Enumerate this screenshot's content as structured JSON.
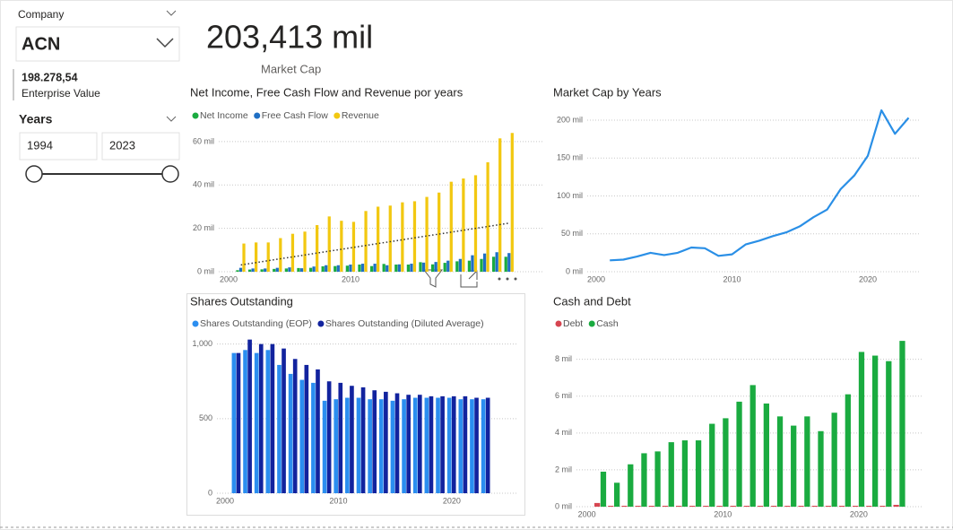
{
  "slicers": {
    "company": {
      "label": "Company",
      "value": "ACN"
    },
    "enterprise_value": {
      "value": "198.278,54",
      "label": "Enterprise Value"
    },
    "years": {
      "label": "Years",
      "start": 1994,
      "end": 2023
    }
  },
  "card": {
    "value": "203,413 mil",
    "label": "Market Cap"
  },
  "chart_data": [
    {
      "type": "bar",
      "title": "Net Income, Free Cash Flow and Revenue por years",
      "x": [
        2001,
        2002,
        2003,
        2004,
        2005,
        2006,
        2007,
        2008,
        2009,
        2010,
        2011,
        2012,
        2013,
        2014,
        2015,
        2016,
        2017,
        2018,
        2019,
        2020,
        2021,
        2022,
        2023
      ],
      "series": [
        {
          "name": "Net Income",
          "color": "#1aab40",
          "values": [
            0.7,
            1.0,
            1.1,
            1.3,
            1.5,
            1.7,
            1.8,
            2.5,
            2.6,
            2.8,
            3.3,
            2.6,
            3.6,
            3.3,
            3.3,
            4.4,
            3.4,
            4.1,
            4.8,
            5.1,
            5.9,
            6.9,
            6.9
          ]
        },
        {
          "name": "Free Cash Flow",
          "color": "#1f6fc4",
          "values": [
            1.8,
            1.5,
            1.5,
            1.8,
            2.0,
            1.6,
            2.4,
            3.0,
            3.0,
            3.3,
            3.7,
            3.7,
            3.0,
            3.4,
            3.7,
            4.2,
            4.5,
            5.1,
            5.9,
            7.6,
            8.4,
            9.0,
            8.6
          ]
        },
        {
          "name": "Revenue",
          "color": "#f2c811",
          "values": [
            13,
            13.5,
            13.5,
            15.5,
            17.5,
            18.5,
            21.5,
            25.5,
            23.5,
            23,
            28,
            30,
            30.5,
            32,
            32.5,
            34.5,
            36.5,
            41.5,
            43,
            44.5,
            50.5,
            61.5,
            64
          ]
        }
      ],
      "xlim": [
        1999.19,
        2025.8
      ],
      "ylim": [
        0,
        67
      ],
      "xticks": [
        2000,
        2010
      ],
      "yticks": [
        {
          "value": 0,
          "label": "0 mil"
        },
        {
          "value": 20,
          "label": "20 mil"
        },
        {
          "value": 40,
          "label": "40 mil"
        },
        {
          "value": 60,
          "label": "60 mil"
        }
      ],
      "grid": true,
      "trendline": true
    },
    {
      "type": "line",
      "title": "Market Cap by Years",
      "x": [
        2001,
        2002,
        2003,
        2004,
        2005,
        2006,
        2007,
        2008,
        2009,
        2010,
        2011,
        2012,
        2013,
        2014,
        2015,
        2016,
        2017,
        2018,
        2019,
        2020,
        2021,
        2022,
        2023
      ],
      "series": [
        {
          "name": "Market Cap",
          "color": "#2a8fe6",
          "values": [
            15,
            16,
            20,
            25,
            22,
            25,
            32,
            31,
            21,
            23,
            36,
            41,
            47,
            52,
            60,
            72,
            82,
            109,
            127,
            153,
            213,
            182,
            203
          ]
        }
      ],
      "xlim": [
        1999.34,
        2023.76
      ],
      "ylim": [
        0,
        215
      ],
      "xticks": [
        2000,
        2010,
        2020
      ],
      "yticks": [
        {
          "value": 0,
          "label": "0 mil"
        },
        {
          "value": 50,
          "label": "50 mil"
        },
        {
          "value": 100,
          "label": "100 mil"
        },
        {
          "value": 150,
          "label": "150 mil"
        },
        {
          "value": 200,
          "label": "200 mil"
        }
      ],
      "grid": true,
      "legend": false
    },
    {
      "type": "bar",
      "title": "Shares Outstanding",
      "x": [
        2001,
        2002,
        2003,
        2004,
        2005,
        2006,
        2007,
        2008,
        2009,
        2010,
        2011,
        2012,
        2013,
        2014,
        2015,
        2016,
        2017,
        2018,
        2019,
        2020,
        2021,
        2022,
        2023
      ],
      "series": [
        {
          "name": "Shares Outstanding (EOP)",
          "color": "#2b8ef0",
          "values": [
            940,
            960,
            940,
            960,
            860,
            800,
            760,
            740,
            620,
            630,
            640,
            640,
            630,
            630,
            620,
            630,
            640,
            640,
            640,
            640,
            630,
            630,
            630
          ]
        },
        {
          "name": "Shares Outstanding (Diluted Average)",
          "color": "#12239e",
          "values": [
            940,
            1030,
            1000,
            1000,
            970,
            900,
            860,
            830,
            750,
            740,
            720,
            710,
            690,
            680,
            670,
            660,
            660,
            650,
            650,
            650,
            650,
            640,
            640
          ]
        }
      ],
      "xlim": [
        1999.29,
        2025.7
      ],
      "ylim": [
        0,
        1070
      ],
      "xticks": [
        2000,
        2010,
        2020
      ],
      "yticks": [
        0,
        500,
        {
          "value": 1000,
          "label": "1,000"
        }
      ],
      "grid": true
    },
    {
      "type": "bar",
      "title": "Cash and Debt",
      "x": [
        2001,
        2002,
        2003,
        2004,
        2005,
        2006,
        2007,
        2008,
        2009,
        2010,
        2011,
        2012,
        2013,
        2014,
        2015,
        2016,
        2017,
        2018,
        2019,
        2020,
        2021,
        2022,
        2023
      ],
      "series": [
        {
          "name": "Debt",
          "color": "#d64550",
          "values": [
            0.2,
            0.05,
            0.05,
            0.05,
            0.05,
            0.05,
            0.05,
            0.05,
            0.05,
            0.05,
            0.05,
            0.05,
            0.05,
            0.05,
            0.05,
            0.05,
            0.05,
            0.05,
            0.05,
            0.05,
            0.05,
            0.05,
            0.1
          ]
        },
        {
          "name": "Cash",
          "color": "#1aab40",
          "values": [
            1.9,
            1.3,
            2.3,
            2.9,
            3.0,
            3.5,
            3.6,
            3.6,
            4.5,
            4.8,
            5.7,
            6.6,
            5.6,
            4.9,
            4.4,
            4.9,
            4.1,
            5.1,
            6.1,
            8.4,
            8.2,
            7.9,
            9.0
          ]
        }
      ],
      "xlim": [
        1999.23,
        2024.76
      ],
      "ylim": [
        0,
        9.2
      ],
      "xticks": [
        2000,
        2010,
        2020
      ],
      "yticks": [
        {
          "value": 0,
          "label": "0 mil"
        },
        {
          "value": 2,
          "label": "2 mil"
        },
        {
          "value": 4,
          "label": "4 mil"
        },
        {
          "value": 6,
          "label": "6 mil"
        },
        {
          "value": 8,
          "label": "8 mil"
        }
      ],
      "grid": true
    }
  ]
}
